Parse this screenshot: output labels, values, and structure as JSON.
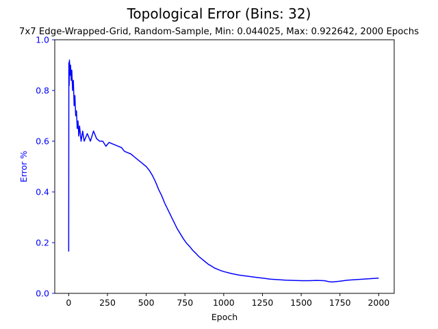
{
  "chart_data": {
    "type": "line",
    "title": "Topological Error (Bins: 32)",
    "subtitle": "7x7 Edge-Wrapped-Grid, Random-Sample, Min: 0.044025, Max: 0.922642, 2000 Epochs",
    "xlabel": "Epoch",
    "ylabel": "Error %",
    "xlim": [
      -90,
      2100
    ],
    "ylim": [
      0.0,
      1.0
    ],
    "xticks": [
      0,
      250,
      500,
      750,
      1000,
      1250,
      1500,
      1750,
      2000
    ],
    "yticks": [
      0.0,
      0.2,
      0.4,
      0.6,
      0.8,
      1.0
    ],
    "grid": false,
    "colors": {
      "line": "#0000ff",
      "yaxis": "#0000ff",
      "axis": "#000000"
    },
    "series": [
      {
        "values": [
          [
            0,
            0.165
          ],
          [
            1,
            0.91
          ],
          [
            3,
            0.82
          ],
          [
            5,
            0.92
          ],
          [
            8,
            0.86
          ],
          [
            12,
            0.9
          ],
          [
            16,
            0.84
          ],
          [
            20,
            0.88
          ],
          [
            25,
            0.8
          ],
          [
            30,
            0.84
          ],
          [
            35,
            0.74
          ],
          [
            40,
            0.78
          ],
          [
            45,
            0.7
          ],
          [
            50,
            0.72
          ],
          [
            55,
            0.65
          ],
          [
            60,
            0.68
          ],
          [
            65,
            0.62
          ],
          [
            70,
            0.66
          ],
          [
            80,
            0.6
          ],
          [
            90,
            0.64
          ],
          [
            100,
            0.6
          ],
          [
            120,
            0.63
          ],
          [
            140,
            0.6
          ],
          [
            160,
            0.64
          ],
          [
            180,
            0.61
          ],
          [
            200,
            0.6
          ],
          [
            220,
            0.6
          ],
          [
            240,
            0.58
          ],
          [
            260,
            0.595
          ],
          [
            280,
            0.59
          ],
          [
            300,
            0.585
          ],
          [
            320,
            0.58
          ],
          [
            340,
            0.575
          ],
          [
            360,
            0.56
          ],
          [
            380,
            0.555
          ],
          [
            400,
            0.55
          ],
          [
            420,
            0.54
          ],
          [
            440,
            0.53
          ],
          [
            460,
            0.52
          ],
          [
            480,
            0.51
          ],
          [
            500,
            0.5
          ],
          [
            520,
            0.485
          ],
          [
            540,
            0.465
          ],
          [
            560,
            0.44
          ],
          [
            580,
            0.41
          ],
          [
            600,
            0.385
          ],
          [
            620,
            0.355
          ],
          [
            640,
            0.33
          ],
          [
            660,
            0.305
          ],
          [
            680,
            0.28
          ],
          [
            700,
            0.255
          ],
          [
            720,
            0.235
          ],
          [
            740,
            0.215
          ],
          [
            760,
            0.198
          ],
          [
            780,
            0.185
          ],
          [
            800,
            0.17
          ],
          [
            820,
            0.158
          ],
          [
            840,
            0.145
          ],
          [
            860,
            0.135
          ],
          [
            880,
            0.125
          ],
          [
            900,
            0.115
          ],
          [
            920,
            0.108
          ],
          [
            940,
            0.1
          ],
          [
            960,
            0.095
          ],
          [
            980,
            0.09
          ],
          [
            1000,
            0.086
          ],
          [
            1050,
            0.078
          ],
          [
            1100,
            0.072
          ],
          [
            1150,
            0.068
          ],
          [
            1200,
            0.064
          ],
          [
            1250,
            0.06
          ],
          [
            1300,
            0.056
          ],
          [
            1350,
            0.054
          ],
          [
            1400,
            0.052
          ],
          [
            1450,
            0.051
          ],
          [
            1500,
            0.05
          ],
          [
            1550,
            0.05
          ],
          [
            1600,
            0.051
          ],
          [
            1650,
            0.05
          ],
          [
            1680,
            0.046
          ],
          [
            1700,
            0.045
          ],
          [
            1750,
            0.048
          ],
          [
            1800,
            0.052
          ],
          [
            1850,
            0.054
          ],
          [
            1900,
            0.056
          ],
          [
            1950,
            0.058
          ],
          [
            2000,
            0.06
          ]
        ]
      }
    ]
  }
}
